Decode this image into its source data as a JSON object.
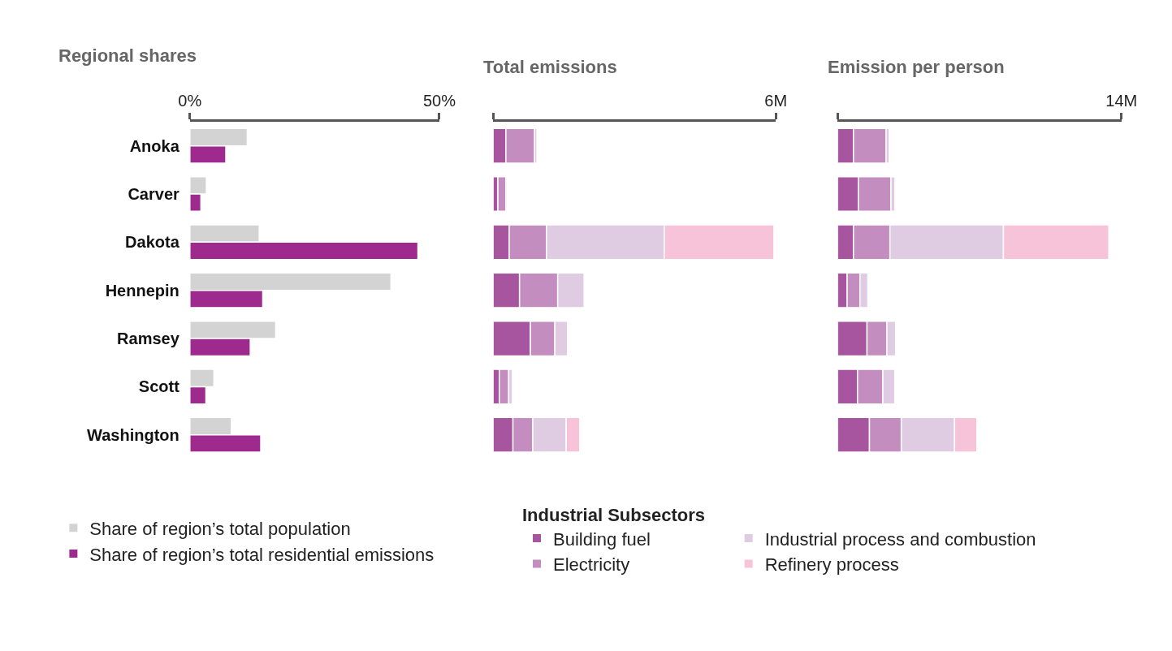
{
  "chart_data": [
    {
      "type": "bar",
      "orientation": "horizontal",
      "title": "Regional shares",
      "categories": [
        "Anoka",
        "Carver",
        "Dakota",
        "Hennepin",
        "Ramsey",
        "Scott",
        "Washington"
      ],
      "xlim": [
        0,
        50
      ],
      "xticks": [
        {
          "value": 0,
          "label": "0%"
        },
        {
          "value": 50,
          "label": "50%"
        }
      ],
      "legend": "bottom left",
      "series": [
        {
          "name": "Share of region’s total population",
          "color": "#d3d3d3",
          "values": [
            11.5,
            3.3,
            13.9,
            40.3,
            17.2,
            4.8,
            8.3
          ]
        },
        {
          "name": "Share of region’s total residential emissions",
          "color": "#9e2a8e",
          "values": [
            7.2,
            2.2,
            45.7,
            14.6,
            12.1,
            3.2,
            14.2
          ]
        }
      ]
    },
    {
      "type": "bar",
      "orientation": "horizontal",
      "stacked": true,
      "title": "Total emissions",
      "categories": [
        "Anoka",
        "Carver",
        "Dakota",
        "Hennepin",
        "Ramsey",
        "Scott",
        "Washington"
      ],
      "xlim": [
        0,
        6000000
      ],
      "xticks": [
        {
          "value": 0,
          "label": null
        },
        {
          "value": 6000000,
          "label": "6M"
        }
      ],
      "tick_labels": "x",
      "legend": "bottom",
      "legend_title": "Industrial Subsectors",
      "series": [
        {
          "name": "Building fuel",
          "color": "#a8559f",
          "values": [
            270000,
            100000,
            340000,
            560000,
            790000,
            130000,
            420000
          ]
        },
        {
          "name": "Electricity",
          "color": "#c48dbf",
          "values": [
            610000,
            170000,
            790000,
            810000,
            520000,
            200000,
            420000
          ]
        },
        {
          "name": "Industrial process and combustion",
          "color": "#e0cce2",
          "values": [
            50000,
            30000,
            2500000,
            560000,
            270000,
            80000,
            710000
          ]
        },
        {
          "name": "Refinery process",
          "color": "#f6c3d8",
          "values": [
            null,
            null,
            2330000,
            null,
            null,
            null,
            290000
          ]
        }
      ]
    },
    {
      "type": "bar",
      "orientation": "horizontal",
      "stacked": true,
      "title": "Emission per person",
      "categories": [
        "Anoka",
        "Carver",
        "Dakota",
        "Hennepin",
        "Ramsey",
        "Scott",
        "Washington"
      ],
      "xlim": [
        0,
        14000000
      ],
      "xticks": [
        {
          "value": 0,
          "label": null
        },
        {
          "value": 14000000,
          "label": "14M"
        }
      ],
      "tick_labels": "x",
      "series": [
        {
          "color": "#a8559f",
          "values": [
            780000,
            1020000,
            780000,
            470000,
            1450000,
            980000,
            1570000
          ]
        },
        {
          "color": "#c48dbf",
          "values": [
            1610000,
            1610000,
            1800000,
            630000,
            980000,
            1250000,
            1570000
          ]
        },
        {
          "color": "#e0cce2",
          "values": [
            160000,
            200000,
            5600000,
            390000,
            430000,
            590000,
            2630000
          ]
        },
        {
          "color": "#f6c3d8",
          "values": [
            null,
            null,
            5200000,
            null,
            null,
            null,
            1100000
          ]
        }
      ]
    }
  ]
}
